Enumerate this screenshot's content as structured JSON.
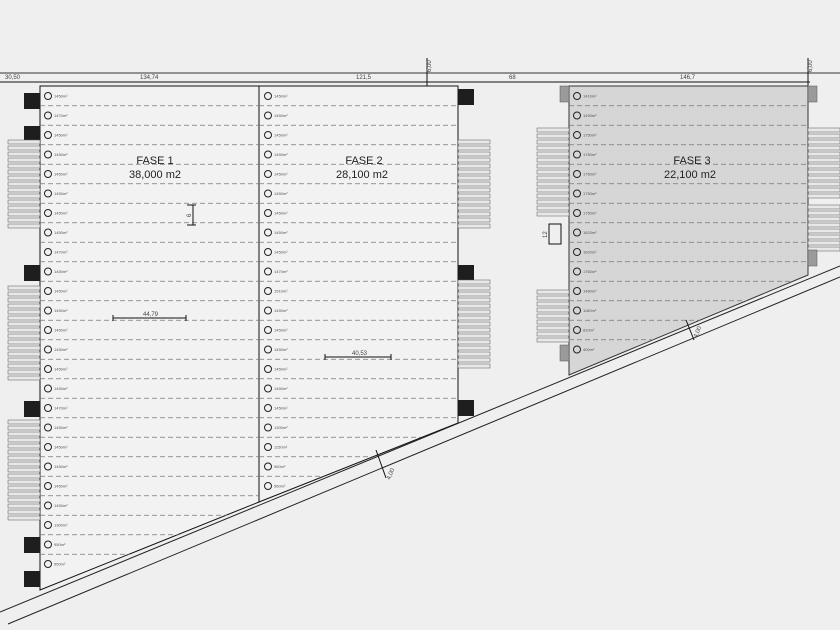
{
  "phases": [
    {
      "title": "FASE 1",
      "area": "38,000 m2"
    },
    {
      "title": "FASE 2",
      "area": "28,100 m2"
    },
    {
      "title": "FASE 3",
      "area": "22,100 m2"
    }
  ],
  "top_dimensions": [
    "30,50",
    "134,74",
    "121,5",
    "68",
    "146,7"
  ],
  "vertical_dimensions": [
    "6,00",
    "6,00"
  ],
  "inner_dimensions": {
    "phase1_width": "44,79",
    "phase1_bay": "6",
    "phase2_width": "40,53",
    "phase3_bay": "12",
    "road_width_1": "4,00",
    "road_width_2": "4,00"
  },
  "unit_labels": {
    "phase1": [
      "1450m²",
      "1470m²",
      "1450m²",
      "1450m²",
      "1450m²",
      "1450m²",
      "1450m²",
      "1450m²",
      "1470m²",
      "1450m²",
      "1450m²",
      "1450m²",
      "1450m²",
      "1450m²",
      "1450m²",
      "1450m²",
      "1470m²",
      "1450m²",
      "1450m²",
      "1450m²",
      "1450m²",
      "1450m²",
      "1300m²",
      "950m²",
      "550m²"
    ],
    "phase2": [
      "1450m²",
      "1450m²",
      "1450m²",
      "1450m²",
      "1450m²",
      "1450m²",
      "1450m²",
      "1450m²",
      "1450m²",
      "1470m²",
      "1510m²",
      "1450m²",
      "1450m²",
      "1450m²",
      "1450m²",
      "1450m²",
      "1450m²",
      "1300m²",
      "1150m²",
      "960m²",
      "560m²"
    ],
    "phase3": [
      "1410m²",
      "1490m²",
      "1750m²",
      "1750m²",
      "1750m²",
      "1750m²",
      "1750m²",
      "1620m²",
      "1620m²",
      "1760m²",
      "1480m²",
      "1180m²",
      "810m²",
      "400m²"
    ]
  },
  "colors": {
    "background": "#efefef",
    "phase3_fill": "#d6d6d6",
    "line": "#222222",
    "dock": "#9a9a9a",
    "core": "#1e1e1e"
  }
}
